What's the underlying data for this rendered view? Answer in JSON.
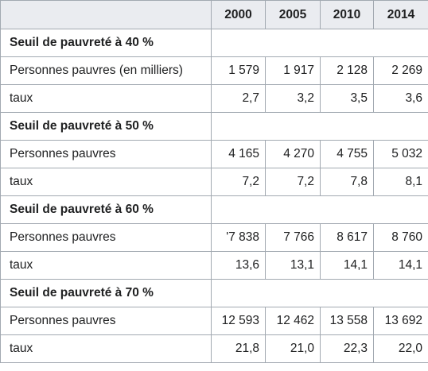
{
  "table": {
    "years": [
      "2000",
      "2005",
      "2010",
      "2014"
    ],
    "sections": [
      {
        "title": "Seuil de pauvreté à 40 %",
        "rows": [
          {
            "label": "Personnes pauvres (en milliers)",
            "values": [
              "1 579",
              "1 917",
              "2 128",
              "2 269"
            ]
          },
          {
            "label": "taux",
            "values": [
              "2,7",
              "3,2",
              "3,5",
              "3,6"
            ]
          }
        ]
      },
      {
        "title": "Seuil de pauvreté à 50 %",
        "rows": [
          {
            "label": "Personnes pauvres",
            "values": [
              "4 165",
              "4 270",
              "4 755",
              "5 032"
            ]
          },
          {
            "label": "taux",
            "values": [
              "7,2",
              "7,2",
              "7,8",
              "8,1"
            ]
          }
        ]
      },
      {
        "title": "Seuil de pauvreté à 60 %",
        "rows": [
          {
            "label": "Personnes pauvres",
            "values": [
              "'7 838",
              "7 766",
              "8 617",
              "8 760"
            ]
          },
          {
            "label": "taux",
            "values": [
              "13,6",
              "13,1",
              "14,1",
              "14,1"
            ]
          }
        ]
      },
      {
        "title": "Seuil de pauvreté à 70 %",
        "rows": [
          {
            "label": "Personnes pauvres",
            "values": [
              "12 593",
              "12 462",
              "13 558",
              "13 692"
            ]
          },
          {
            "label": "taux",
            "values": [
              "21,8",
              "21,0",
              "22,3",
              "22,0"
            ]
          }
        ]
      }
    ]
  }
}
